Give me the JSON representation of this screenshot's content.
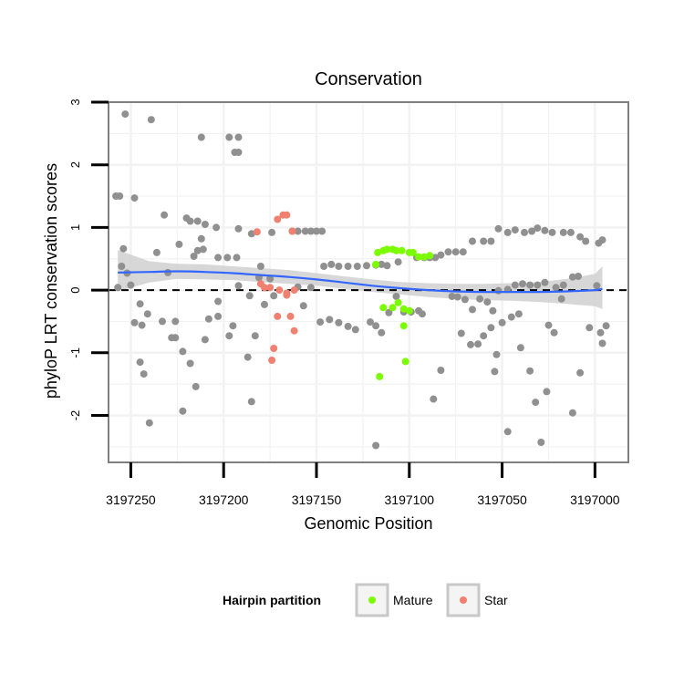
{
  "chart_data": {
    "type": "scatter",
    "title": "Conservation",
    "xlabel": "Genomic Position",
    "ylabel": "phyloP LRT conservation scores",
    "xlim": [
      3197262,
      3196982
    ],
    "ylim": [
      -2.75,
      3.0
    ],
    "x_reversed": true,
    "x_ticks": [
      3197250,
      3197200,
      3197150,
      3197100,
      3197050,
      3197000
    ],
    "x_tick_labels": [
      "3197250",
      "3197200",
      "3197150",
      "3197100",
      "3197050",
      "3197000"
    ],
    "y_ticks": [
      -2,
      -1,
      0,
      1,
      2,
      3
    ],
    "y_tick_labels": [
      "-2",
      "-1",
      "0",
      "1",
      "2",
      "3"
    ],
    "reference_line": {
      "y": 0,
      "style": "dashed",
      "color": "#000000"
    },
    "grid": true,
    "legend": {
      "title": "Hairpin partition",
      "placement": "bottom",
      "entries": [
        {
          "label": "Mature",
          "color": "#7CFC00"
        },
        {
          "label": "Star",
          "color": "#F08070"
        }
      ]
    },
    "colors": {
      "other": "#909090",
      "mature": "#7CFC00",
      "star": "#F08070",
      "smooth": "#3366FF",
      "band": "#D0D0D0"
    },
    "smooth": {
      "x": [
        3197257,
        3197240,
        3197225,
        3197210,
        3197195,
        3197180,
        3197165,
        3197150,
        3197135,
        3197120,
        3197105,
        3197090,
        3197075,
        3197060,
        3197045,
        3197030,
        3197015,
        3197000,
        3196996
      ],
      "y": [
        0.28,
        0.29,
        0.3,
        0.29,
        0.27,
        0.24,
        0.21,
        0.17,
        0.12,
        0.07,
        0.03,
        0.0,
        -0.02,
        -0.03,
        -0.03,
        -0.03,
        -0.02,
        0.0,
        0.02
      ],
      "lower": [
        -0.02,
        0.12,
        0.18,
        0.17,
        0.16,
        0.13,
        0.1,
        0.07,
        0.02,
        -0.03,
        -0.07,
        -0.11,
        -0.14,
        -0.16,
        -0.17,
        -0.19,
        -0.22,
        -0.26,
        -0.3
      ],
      "upper": [
        0.64,
        0.46,
        0.42,
        0.41,
        0.38,
        0.35,
        0.32,
        0.27,
        0.22,
        0.17,
        0.13,
        0.11,
        0.1,
        0.1,
        0.11,
        0.13,
        0.18,
        0.26,
        0.38
      ]
    },
    "series": [
      {
        "name": "Other",
        "color": "#909090",
        "points": [
          [
            3197256,
            1.5
          ],
          [
            3197258,
            1.5
          ],
          [
            3197248,
            1.47
          ],
          [
            3197255,
            0.38
          ],
          [
            3197254,
            0.66
          ],
          [
            3197252,
            0.27
          ],
          [
            3197250,
            0.08
          ],
          [
            3197257,
            0.04
          ],
          [
            3197253,
            2.81
          ],
          [
            3197239,
            2.72
          ],
          [
            3197245,
            -0.22
          ],
          [
            3197241,
            -0.38
          ],
          [
            3197248,
            -0.52
          ],
          [
            3197244,
            -0.56
          ],
          [
            3197245,
            -1.15
          ],
          [
            3197243,
            -1.34
          ],
          [
            3197240,
            -2.12
          ],
          [
            3197232,
            1.2
          ],
          [
            3197230,
            0.28
          ],
          [
            3197236,
            0.6
          ],
          [
            3197233,
            -0.5
          ],
          [
            3197226,
            -0.5
          ],
          [
            3197228,
            -0.76
          ],
          [
            3197226,
            -0.76
          ],
          [
            3197222,
            -0.98
          ],
          [
            3197218,
            -1.17
          ],
          [
            3197222,
            -1.93
          ],
          [
            3197215,
            -1.54
          ],
          [
            3197218,
            1.1
          ],
          [
            3197214,
            1.1
          ],
          [
            3197210,
            1.05
          ],
          [
            3197220,
            1.15
          ],
          [
            3197224,
            0.73
          ],
          [
            3197212,
            0.82
          ],
          [
            3197214,
            0.63
          ],
          [
            3197216,
            0.54
          ],
          [
            3197211,
            0.65
          ],
          [
            3197203,
            0.52
          ],
          [
            3197198,
            0.52
          ],
          [
            3197193,
            0.52
          ],
          [
            3197208,
            -0.46
          ],
          [
            3197210,
            -0.79
          ],
          [
            3197203,
            -0.42
          ],
          [
            3197197,
            -0.73
          ],
          [
            3197203,
            -0.18
          ],
          [
            3197192,
            0.07
          ],
          [
            3197195,
            -0.57
          ],
          [
            3197186,
            -0.09
          ],
          [
            3197187,
            -1.07
          ],
          [
            3197185,
            -1.78
          ],
          [
            3197183,
            -0.73
          ],
          [
            3197178,
            -0.23
          ],
          [
            3197173,
            -0.09
          ],
          [
            3197180,
            0.38
          ],
          [
            3197181,
            0.2
          ],
          [
            3197175,
            0.18
          ],
          [
            3197174,
            0.92
          ],
          [
            3197185,
            0.9
          ],
          [
            3197192,
            0.98
          ],
          [
            3197204,
            1.0
          ],
          [
            3197212,
            2.44
          ],
          [
            3197197,
            2.44
          ],
          [
            3197192,
            2.44
          ],
          [
            3197194,
            2.2
          ],
          [
            3197192,
            2.2
          ],
          [
            3197163,
            0.94
          ],
          [
            3197160,
            0.94
          ],
          [
            3197156,
            0.94
          ],
          [
            3197153,
            0.94
          ],
          [
            3197150,
            0.94
          ],
          [
            3197147,
            0.94
          ],
          [
            3197160,
            0.05
          ],
          [
            3197153,
            0.04
          ],
          [
            3197157,
            -0.25
          ],
          [
            3197148,
            -0.51
          ],
          [
            3197143,
            -0.47
          ],
          [
            3197138,
            -0.52
          ],
          [
            3197133,
            -0.58
          ],
          [
            3197129,
            -0.63
          ],
          [
            3197146,
            0.38
          ],
          [
            3197142,
            0.41
          ],
          [
            3197138,
            0.38
          ],
          [
            3197133,
            0.38
          ],
          [
            3197128,
            0.38
          ],
          [
            3197123,
            0.39
          ],
          [
            3197118,
            0.4
          ],
          [
            3197115,
            0.41
          ],
          [
            3197112,
            0.39
          ],
          [
            3197121,
            -0.51
          ],
          [
            3197118,
            -0.57
          ],
          [
            3197115,
            -0.68
          ],
          [
            3197118,
            -2.48
          ],
          [
            3197103,
            -0.35
          ],
          [
            3197099,
            -0.35
          ],
          [
            3197095,
            -0.33
          ],
          [
            3197093,
            -0.38
          ],
          [
            3197087,
            -1.74
          ],
          [
            3197083,
            -1.28
          ],
          [
            3197096,
            0.52
          ],
          [
            3197092,
            0.52
          ],
          [
            3197089,
            0.52
          ],
          [
            3197086,
            0.52
          ],
          [
            3197083,
            0.56
          ],
          [
            3197079,
            0.61
          ],
          [
            3197075,
            0.61
          ],
          [
            3197071,
            0.61
          ],
          [
            3197066,
            0.78
          ],
          [
            3197060,
            0.78
          ],
          [
            3197056,
            0.78
          ],
          [
            3197052,
            0.98
          ],
          [
            3197047,
            0.92
          ],
          [
            3197043,
            0.96
          ],
          [
            3197038,
            0.92
          ],
          [
            3197034,
            0.94
          ],
          [
            3197031,
            0.99
          ],
          [
            3197027,
            0.95
          ],
          [
            3197023,
            0.92
          ],
          [
            3197017,
            0.92
          ],
          [
            3197013,
            0.92
          ],
          [
            3197008,
            0.85
          ],
          [
            3197005,
            0.78
          ],
          [
            3196998,
            0.75
          ],
          [
            3196996,
            0.8
          ],
          [
            3197077,
            -0.1
          ],
          [
            3197074,
            -0.11
          ],
          [
            3197070,
            -0.15
          ],
          [
            3197066,
            -0.31
          ],
          [
            3197062,
            -0.14
          ],
          [
            3197058,
            -0.19
          ],
          [
            3197055,
            -0.33
          ],
          [
            3197052,
            -0.01
          ],
          [
            3197047,
            0.01
          ],
          [
            3197043,
            0.08
          ],
          [
            3197039,
            0.1
          ],
          [
            3197035,
            0.08
          ],
          [
            3197031,
            0.08
          ],
          [
            3197027,
            0.12
          ],
          [
            3197021,
            0.04
          ],
          [
            3197017,
            0.08
          ],
          [
            3197012,
            0.21
          ],
          [
            3197009,
            0.22
          ],
          [
            3196999,
            0.07
          ],
          [
            3197072,
            -0.69
          ],
          [
            3197067,
            -0.87
          ],
          [
            3197063,
            -0.86
          ],
          [
            3197060,
            -0.73
          ],
          [
            3197056,
            -0.6
          ],
          [
            3197053,
            -1.03
          ],
          [
            3197054,
            -1.3
          ],
          [
            3197050,
            -0.52
          ],
          [
            3197045,
            -0.43
          ],
          [
            3197041,
            -0.38
          ],
          [
            3197040,
            -0.92
          ],
          [
            3197047,
            -2.26
          ],
          [
            3197035,
            -1.29
          ],
          [
            3197032,
            -1.79
          ],
          [
            3197025,
            -0.56
          ],
          [
            3197022,
            -0.68
          ],
          [
            3197026,
            -1.62
          ],
          [
            3197029,
            -2.43
          ],
          [
            3197018,
            -0.14
          ],
          [
            3197012,
            -1.96
          ],
          [
            3197008,
            -1.32
          ],
          [
            3197003,
            -0.6
          ],
          [
            3196997,
            -0.68
          ],
          [
            3196994,
            -0.57
          ],
          [
            3196996,
            -0.85
          ],
          [
            3197111,
            -0.36
          ],
          [
            3197107,
            -0.1
          ],
          [
            3197106,
            0.45
          ]
        ]
      },
      {
        "name": "Mature",
        "color": "#7CFC00",
        "points": [
          [
            3197118,
            0.41
          ],
          [
            3197117,
            0.6
          ],
          [
            3197114,
            0.63
          ],
          [
            3197112,
            0.65
          ],
          [
            3197109,
            0.65
          ],
          [
            3197107,
            0.63
          ],
          [
            3197104,
            0.63
          ],
          [
            3197100,
            0.6
          ],
          [
            3197098,
            0.6
          ],
          [
            3197095,
            0.53
          ],
          [
            3197092,
            0.53
          ],
          [
            3197089,
            0.55
          ],
          [
            3197114,
            -0.28
          ],
          [
            3197109,
            -0.28
          ],
          [
            3197106,
            -0.2
          ],
          [
            3197103,
            -0.3
          ],
          [
            3197100,
            -0.33
          ],
          [
            3197103,
            -0.57
          ],
          [
            3197116,
            -1.38
          ],
          [
            3197102,
            -1.14
          ]
        ]
      },
      {
        "name": "Star",
        "color": "#F08070",
        "points": [
          [
            3197182,
            0.93
          ],
          [
            3197171,
            1.13
          ],
          [
            3197168,
            1.2
          ],
          [
            3197166,
            1.2
          ],
          [
            3197163,
            0.94
          ],
          [
            3197180,
            0.1
          ],
          [
            3197178,
            0.04
          ],
          [
            3197175,
            0.04
          ],
          [
            3197170,
            0.0
          ],
          [
            3197166,
            -0.05
          ],
          [
            3197162,
            0.0
          ],
          [
            3197166,
            -0.08
          ],
          [
            3197171,
            -0.42
          ],
          [
            3197164,
            -0.42
          ],
          [
            3197162,
            -0.65
          ],
          [
            3197173,
            -0.93
          ],
          [
            3197174,
            -1.12
          ]
        ]
      }
    ]
  }
}
